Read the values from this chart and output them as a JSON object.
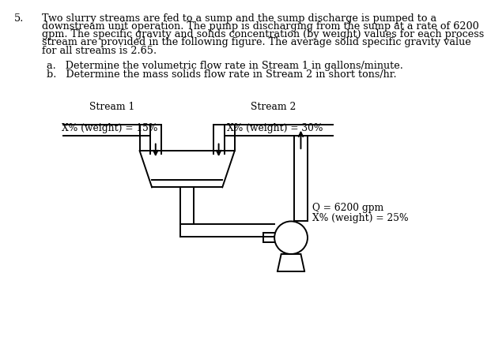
{
  "background_color": "#ffffff",
  "problem_number": "5.",
  "problem_text_lines": [
    "Two slurry streams are fed to a sump and the sump discharge is pumped to a",
    "downstream unit operation. The pump is discharging from the sump at a rate of 6200",
    "gpm. The specific gravity and solids concentration (by weight) values for each process",
    "stream are provided in the following figure. The average solid specific gravity value",
    "for all streams is 2.65."
  ],
  "sub_a": "a.   Determine the volumetric flow rate in Stream 1 in gallons/minute.",
  "sub_b": "b.   Determine the mass solids flow rate in Stream 2 in short tons/hr.",
  "stream1_label": "Stream 1",
  "stream1_conc": "X% (weight) = 15%",
  "stream2_label": "Stream 2",
  "stream2_conc": "X% (weight) = 30%",
  "pump_label1": "Q = 6200 gpm",
  "pump_label2": "X% (weight) = 25%",
  "line_color": "#000000",
  "text_color": "#000000",
  "font_size_body": 9.2,
  "font_size_labels": 8.8
}
